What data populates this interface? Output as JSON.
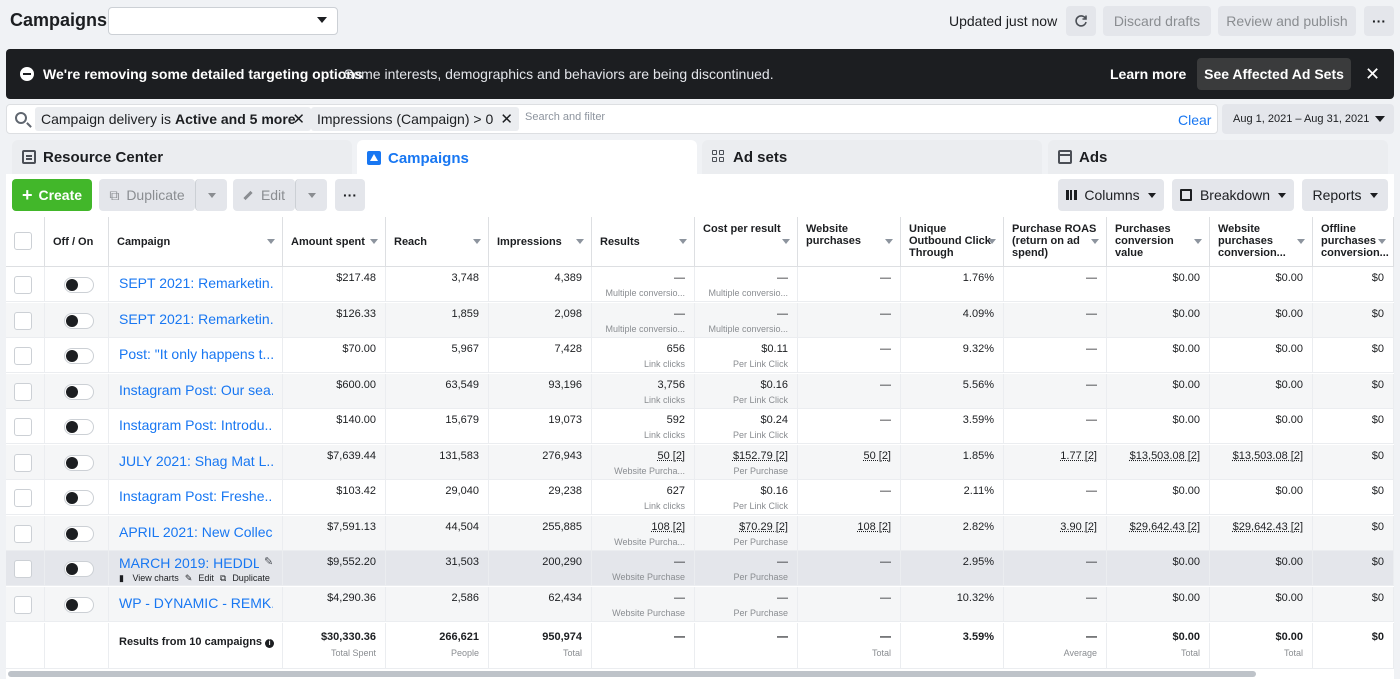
{
  "header": {
    "title": "Campaigns",
    "updated": "Updated just now",
    "discard_label": "Discard drafts",
    "review_label": "Review and publish",
    "more_label": "···"
  },
  "banner": {
    "title": "We're removing some detailed targeting options",
    "text": "Some interests, demographics and behaviors are being discontinued.",
    "learn_more": "Learn more",
    "affected_button": "See Affected Ad Sets",
    "close": "✕"
  },
  "filters": {
    "chip1_text": "Campaign delivery is",
    "chip1_bold": "Active and 5 more",
    "chip2_text": "Impressions (Campaign) > 0",
    "placeholder": "Search and filter",
    "clear": "Clear",
    "date_range": "Aug 1, 2021 – Aug 31, 2021"
  },
  "tabs": {
    "resource": "Resource Center",
    "campaigns": "Campaigns",
    "adsets": "Ad sets",
    "ads": "Ads"
  },
  "toolbar": {
    "create": "Create",
    "duplicate": "Duplicate",
    "edit": "Edit",
    "more": "···",
    "columns": "Columns",
    "breakdown": "Breakdown",
    "reports": "Reports"
  },
  "columns": [
    "Off / On",
    "Campaign",
    "Amount spent",
    "Reach",
    "Impressions",
    "Results",
    "Cost per result",
    "Website purchases",
    "Unique Outbound Click Through",
    "Purchase ROAS (return on ad spend)",
    "Purchases conversion value",
    "Website purchases conversion...",
    "Offline purchases conversion..."
  ],
  "rows": [
    {
      "campaign": "SEPT 2021: Remarketin...",
      "spent": "$217.48",
      "reach": "3,748",
      "impressions": "4,389",
      "results": "—",
      "results_sub": "Multiple conversio...",
      "cpr": "—",
      "cpr_sub": "Multiple conversio...",
      "web_purchases": "—",
      "unique_ctr": "1.76%",
      "roas": "—",
      "pcv": "$0.00",
      "wpcv": "$0.00",
      "opcv": "$0"
    },
    {
      "campaign": "SEPT 2021: Remarketin...",
      "spent": "$126.33",
      "reach": "1,859",
      "impressions": "2,098",
      "results": "—",
      "results_sub": "Multiple conversio...",
      "cpr": "—",
      "cpr_sub": "Multiple conversio...",
      "web_purchases": "—",
      "unique_ctr": "4.09%",
      "roas": "—",
      "pcv": "$0.00",
      "wpcv": "$0.00",
      "opcv": "$0"
    },
    {
      "campaign": "Post: \"It only happens t...",
      "spent": "$70.00",
      "reach": "5,967",
      "impressions": "7,428",
      "results": "656",
      "results_sub": "Link clicks",
      "cpr": "$0.11",
      "cpr_sub": "Per Link Click",
      "web_purchases": "—",
      "unique_ctr": "9.32%",
      "roas": "—",
      "pcv": "$0.00",
      "wpcv": "$0.00",
      "opcv": "$0"
    },
    {
      "campaign": "Instagram Post: Our sea...",
      "spent": "$600.00",
      "reach": "63,549",
      "impressions": "93,196",
      "results": "3,756",
      "results_sub": "Link clicks",
      "cpr": "$0.16",
      "cpr_sub": "Per Link Click",
      "web_purchases": "—",
      "unique_ctr": "5.56%",
      "roas": "—",
      "pcv": "$0.00",
      "wpcv": "$0.00",
      "opcv": "$0"
    },
    {
      "campaign": "Instagram Post: Introdu...",
      "spent": "$140.00",
      "reach": "15,679",
      "impressions": "19,073",
      "results": "592",
      "results_sub": "Link clicks",
      "cpr": "$0.24",
      "cpr_sub": "Per Link Click",
      "web_purchases": "—",
      "unique_ctr": "3.59%",
      "roas": "—",
      "pcv": "$0.00",
      "wpcv": "$0.00",
      "opcv": "$0"
    },
    {
      "campaign": "JULY 2021: Shag Mat L...",
      "spent": "$7,639.44",
      "reach": "131,583",
      "impressions": "276,943",
      "results": "50 [2]",
      "results_sub": "Website Purcha...",
      "cpr": "$152.79 [2]",
      "cpr_sub": "Per Purchase",
      "web_purchases": "50 [2]",
      "unique_ctr": "1.85%",
      "roas": "1.77 [2]",
      "pcv": "$13,503.08 [2]",
      "wpcv": "$13,503.08 [2]",
      "opcv": "$0"
    },
    {
      "campaign": "Instagram Post: Freshe...",
      "spent": "$103.42",
      "reach": "29,040",
      "impressions": "29,238",
      "results": "627",
      "results_sub": "Link clicks",
      "cpr": "$0.16",
      "cpr_sub": "Per Link Click",
      "web_purchases": "—",
      "unique_ctr": "2.11%",
      "roas": "—",
      "pcv": "$0.00",
      "wpcv": "$0.00",
      "opcv": "$0"
    },
    {
      "campaign": "APRIL 2021: New Collec...",
      "spent": "$7,591.13",
      "reach": "44,504",
      "impressions": "255,885",
      "results": "108 [2]",
      "results_sub": "Website Purcha...",
      "cpr": "$70.29 [2]",
      "cpr_sub": "Per Purchase",
      "web_purchases": "108 [2]",
      "unique_ctr": "2.82%",
      "roas": "3.90 [2]",
      "pcv": "$29,642.43 [2]",
      "wpcv": "$29,642.43 [2]",
      "opcv": "$0"
    },
    {
      "campaign": "MARCH 2019: HEDDL...",
      "spent": "$9,552.20",
      "reach": "31,503",
      "impressions": "200,290",
      "results": "—",
      "results_sub": "Website Purchase",
      "cpr": "—",
      "cpr_sub": "Per Purchase",
      "web_purchases": "—",
      "unique_ctr": "2.95%",
      "roas": "—",
      "pcv": "$0.00",
      "wpcv": "$0.00",
      "opcv": "$0",
      "actions": {
        "view_charts": "View charts",
        "edit": "Edit",
        "duplicate": "Duplicate"
      }
    },
    {
      "campaign": "WP - DYNAMIC - REMK...",
      "spent": "$4,290.36",
      "reach": "2,586",
      "impressions": "62,434",
      "results": "—",
      "results_sub": "Website Purchase",
      "cpr": "—",
      "cpr_sub": "Per Purchase",
      "web_purchases": "—",
      "unique_ctr": "10.32%",
      "roas": "—",
      "pcv": "$0.00",
      "wpcv": "$0.00",
      "opcv": "$0"
    }
  ],
  "summary": {
    "label": "Results from 10 campaigns",
    "spent": "$30,330.36",
    "spent_sub": "Total Spent",
    "reach": "266,621",
    "reach_sub": "People",
    "impressions": "950,974",
    "impressions_sub": "Total",
    "results": "—",
    "cpr": "—",
    "web_purchases": "—",
    "web_purchases_sub": "Total",
    "unique_ctr": "3.59%",
    "roas": "—",
    "roas_sub": "Average",
    "pcv": "$0.00",
    "pcv_sub": "Total",
    "wpcv": "$0.00",
    "wpcv_sub": "Total",
    "opcv": "$0"
  },
  "colors": {
    "accent": "#1877f2",
    "create": "#42b72a",
    "banner": "#1c1e21"
  }
}
